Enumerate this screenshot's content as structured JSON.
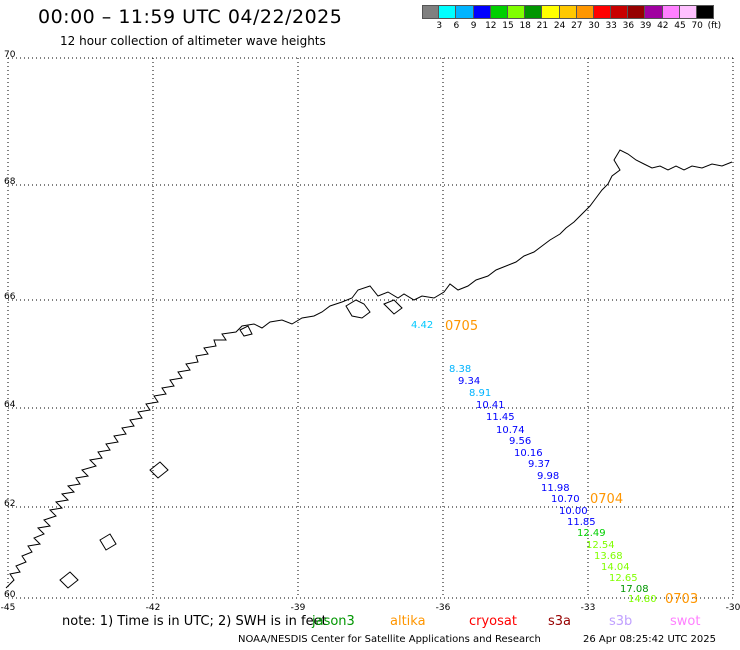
{
  "header": {
    "title": "00:00 – 11:59 UTC 04/22/2025",
    "subtitle": "12 hour collection of altimeter wave heights"
  },
  "legend": {
    "colors": [
      "#808080",
      "#00ffff",
      "#00b4ff",
      "#0000ff",
      "#00d000",
      "#80ff00",
      "#009600",
      "#ffff00",
      "#ffc800",
      "#ff9600",
      "#ff0000",
      "#c80000",
      "#960000",
      "#a000a0",
      "#ff80ff",
      "#ffc0ff",
      "#000000"
    ],
    "labels": [
      "3",
      "6",
      "9",
      "12",
      "15",
      "18",
      "21",
      "24",
      "27",
      "30",
      "33",
      "36",
      "39",
      "42",
      "45",
      "70",
      "(ft)"
    ]
  },
  "map": {
    "lat_labels": [
      "70",
      "68",
      "66",
      "64",
      "62",
      "60"
    ],
    "lon_labels": [
      "-45",
      "-42",
      "-39",
      "-36",
      "-33",
      "-30"
    ],
    "coastline": "Greenland east coast"
  },
  "observations": [
    {
      "value": "4.42",
      "color": "#00c8ff"
    },
    {
      "value": "8.38",
      "color": "#00b4ff"
    },
    {
      "value": "9.34",
      "color": "#0000ff"
    },
    {
      "value": "8.91",
      "color": "#00b4ff"
    },
    {
      "value": "10.41",
      "color": "#0000ff"
    },
    {
      "value": "11.45",
      "color": "#0000ff"
    },
    {
      "value": "10.74",
      "color": "#0000ff"
    },
    {
      "value": "9.56",
      "color": "#0000ff"
    },
    {
      "value": "10.16",
      "color": "#0000ff"
    },
    {
      "value": "9.37",
      "color": "#0000ff"
    },
    {
      "value": "9.98",
      "color": "#0000ff"
    },
    {
      "value": "11.98",
      "color": "#0000ff"
    },
    {
      "value": "10.70",
      "color": "#0000ff"
    },
    {
      "value": "10.00",
      "color": "#0000ff"
    },
    {
      "value": "11.85",
      "color": "#0000ff"
    },
    {
      "value": "12.49",
      "color": "#00d000"
    },
    {
      "value": "12.54",
      "color": "#80ff00"
    },
    {
      "value": "13.68",
      "color": "#80ff00"
    },
    {
      "value": "14.04",
      "color": "#80ff00"
    },
    {
      "value": "12.65",
      "color": "#80ff00"
    },
    {
      "value": "17.08",
      "color": "#009600"
    },
    {
      "value": "14.80",
      "color": "#80ff00"
    }
  ],
  "time_tags": [
    {
      "value": "0705",
      "color": "#ff9600"
    },
    {
      "value": "0704",
      "color": "#ff9600"
    },
    {
      "value": "0703",
      "color": "#ff9600"
    }
  ],
  "footer": {
    "note": "note:  1) Time is in UTC; 2) SWH is in feet",
    "satellites": [
      {
        "name": "jason3",
        "color": "#009600"
      },
      {
        "name": "altika",
        "color": "#ff9600"
      },
      {
        "name": "cryosat",
        "color": "#ff0000"
      },
      {
        "name": "s3a",
        "color": "#960000"
      },
      {
        "name": "s3b",
        "color": "#c0a0ff"
      },
      {
        "name": "swot",
        "color": "#ff80ff"
      }
    ],
    "credit": "NOAA/NESDIS Center for Satellite Applications and Research",
    "timestamp": "26 Apr 08:25:42 UTC 2025"
  }
}
